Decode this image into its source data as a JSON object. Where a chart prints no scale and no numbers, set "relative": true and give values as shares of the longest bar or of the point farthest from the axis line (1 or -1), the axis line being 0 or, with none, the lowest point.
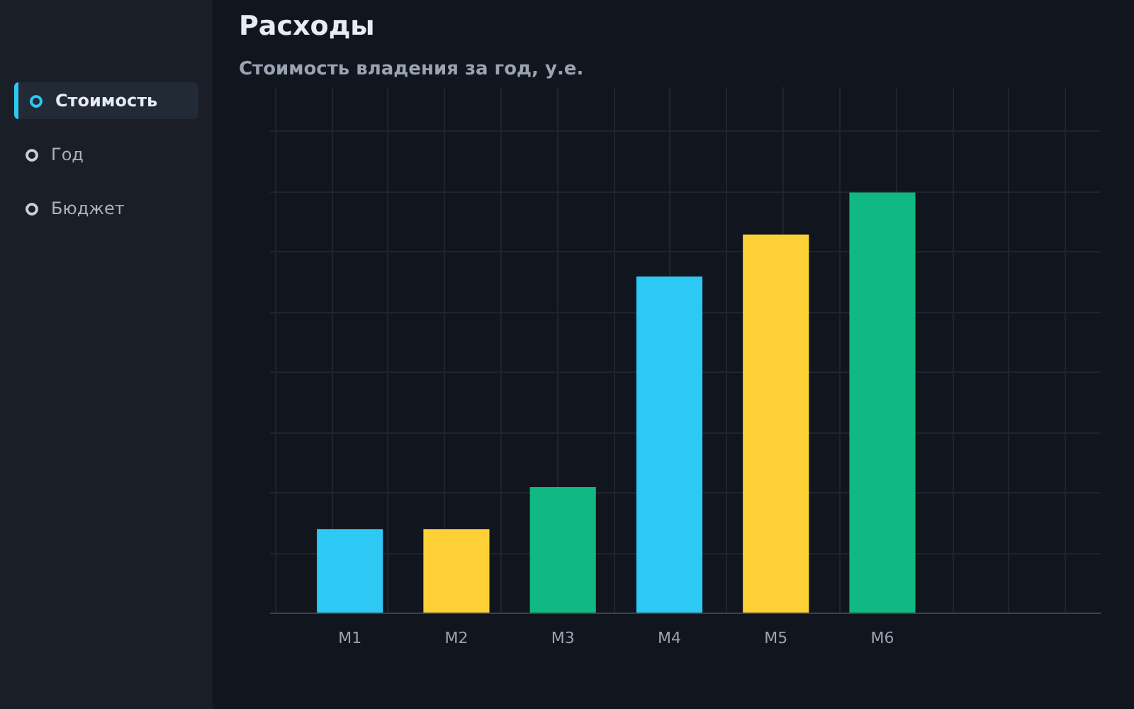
{
  "chart_data": {
    "type": "bar",
    "title": "Расходы",
    "subtitle": "Стоимость владения за год, у.е.",
    "categories": [
      "M1",
      "M2",
      "M3",
      "M4",
      "M5",
      "M6"
    ],
    "values": [
      0.2,
      0.2,
      0.3,
      0.8,
      0.9,
      1.0
    ],
    "colors": [
      "#2ec8f5",
      "#fdd135",
      "#10b981",
      "#2ec8f5",
      "#fdd135",
      "#10b981"
    ],
    "relative": true,
    "grid": true,
    "annotations": [
      "Стоимость",
      "Год",
      "Бюджет"
    ]
  }
}
